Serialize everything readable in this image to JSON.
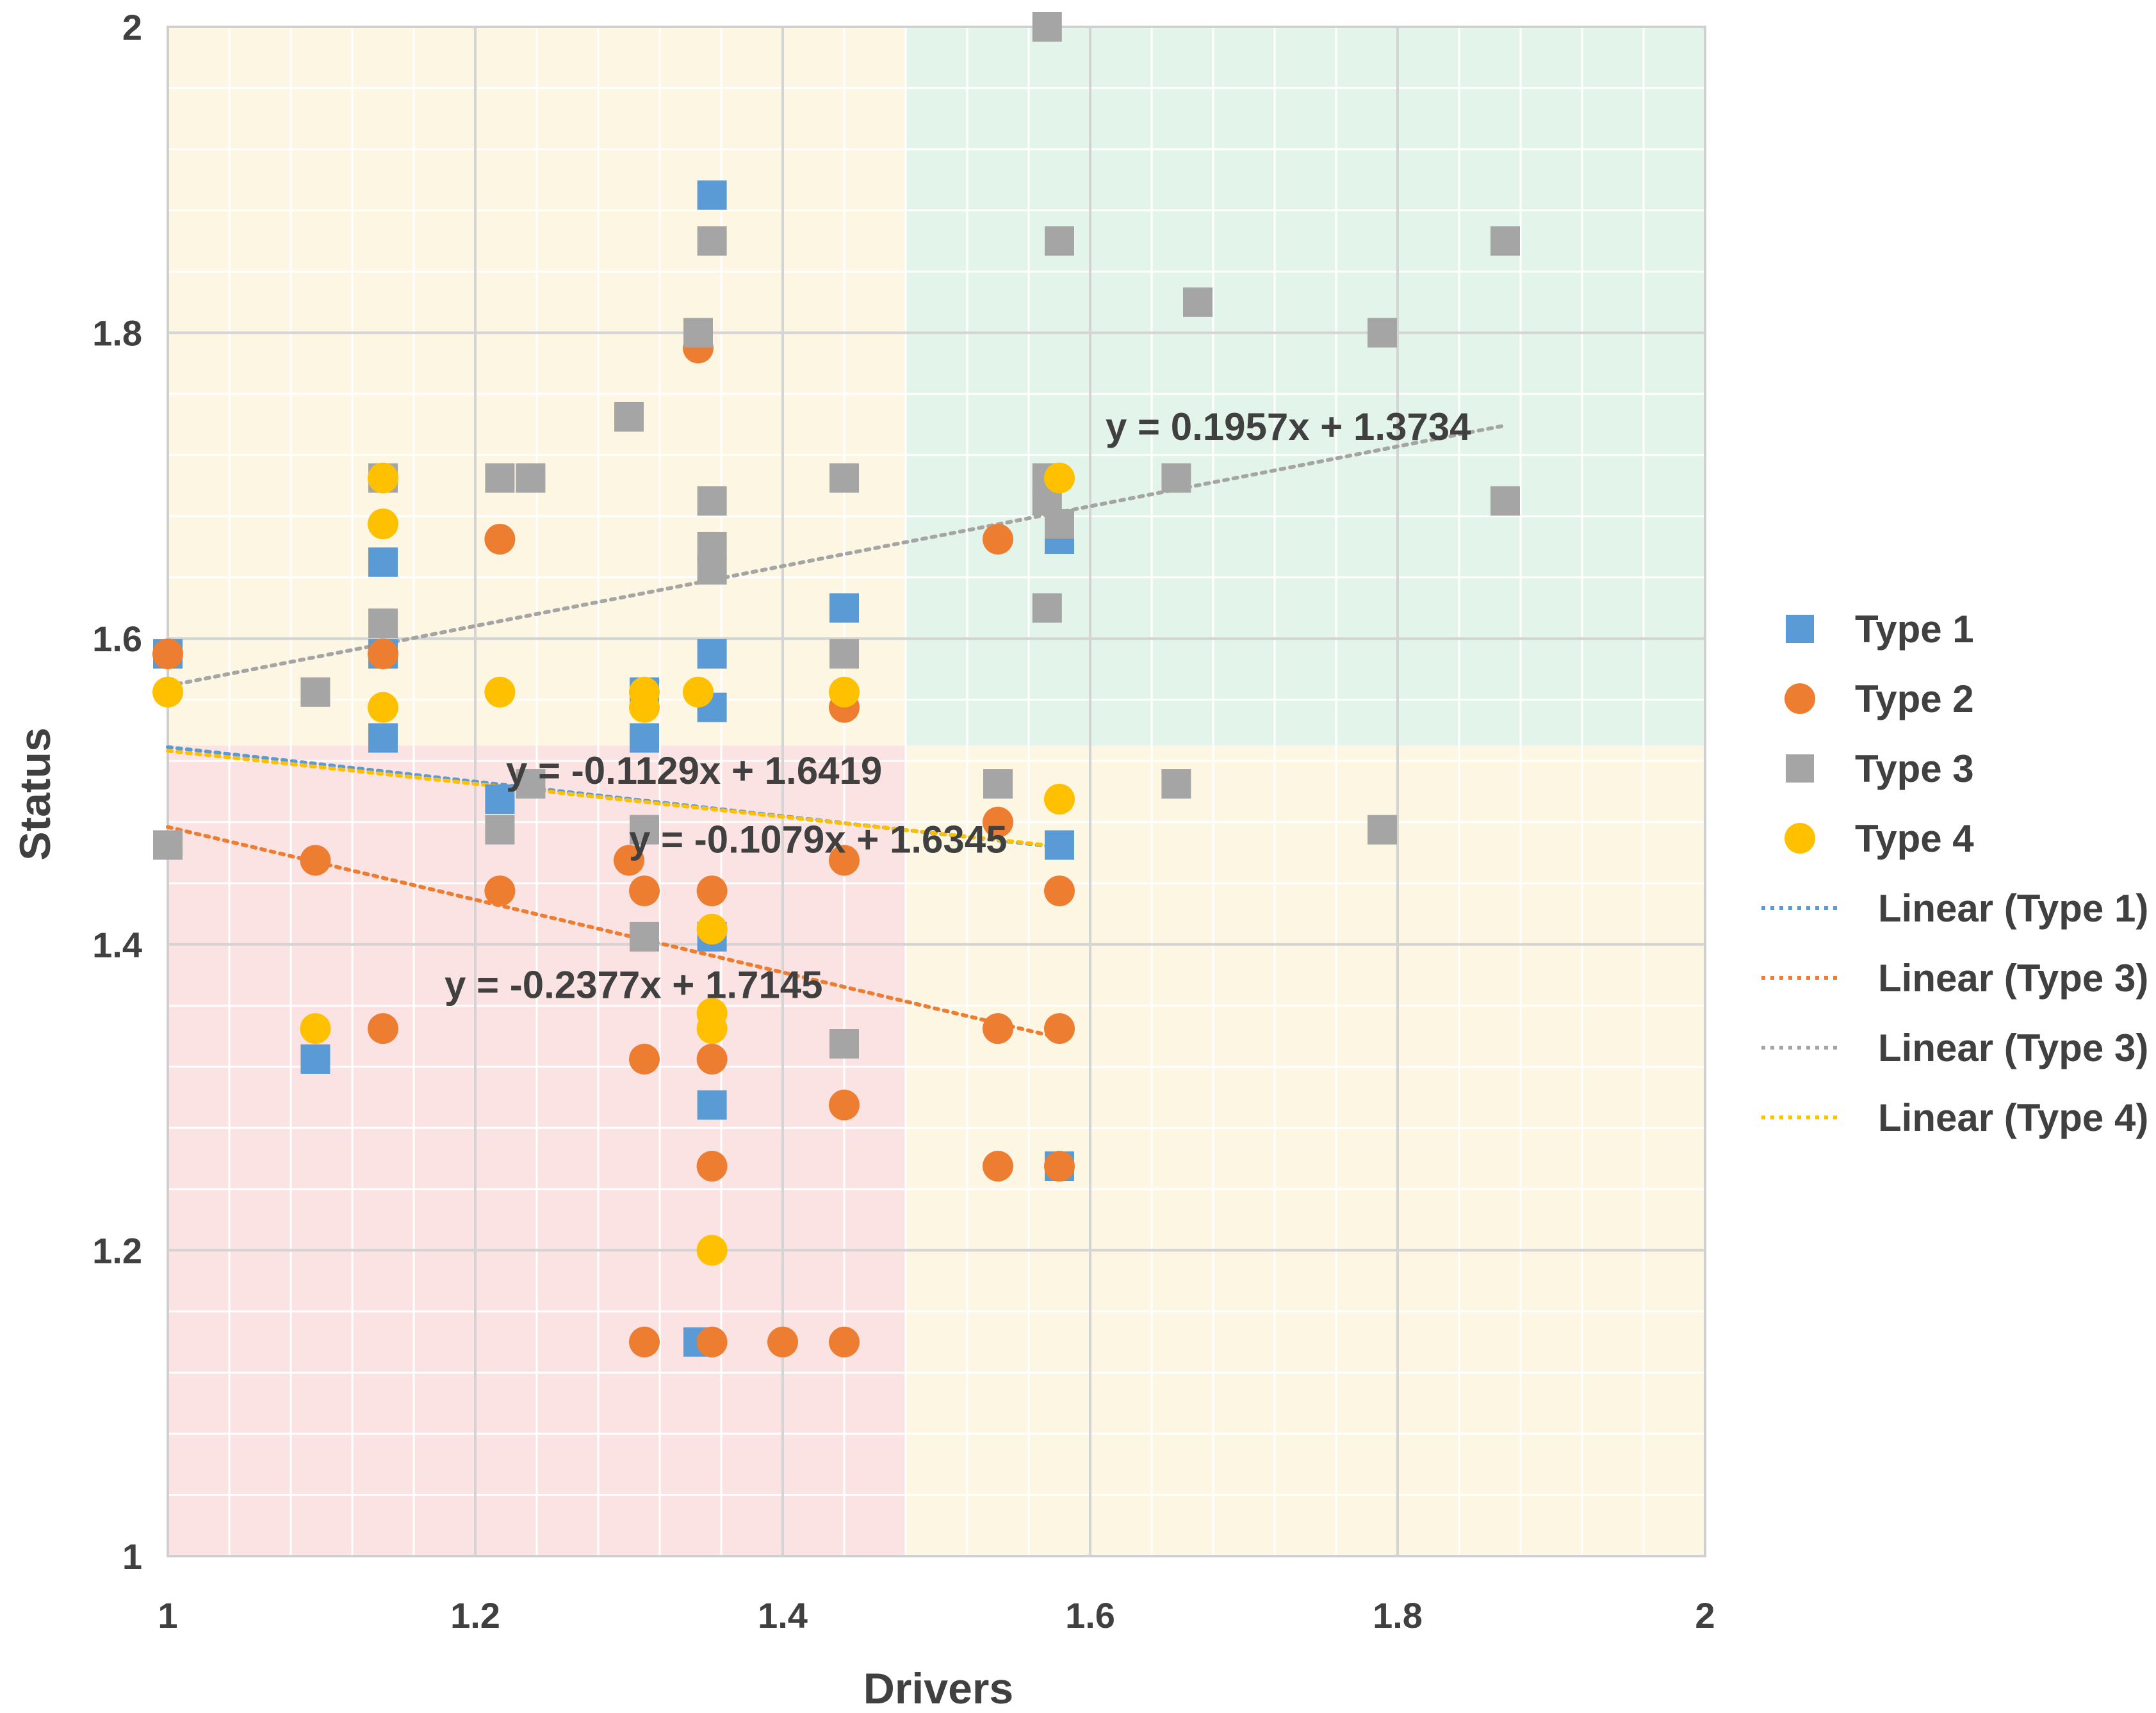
{
  "chart_data": {
    "type": "scatter",
    "title": "",
    "xlabel": "Drivers",
    "ylabel": "Status",
    "xlim": [
      1,
      2
    ],
    "ylim": [
      1,
      2
    ],
    "x_ticks": [
      "1",
      "1.2",
      "1.4",
      "1.6",
      "1.8",
      "2"
    ],
    "y_ticks": [
      "1",
      "1.2",
      "1.4",
      "1.6",
      "1.8",
      "2"
    ],
    "grid": true,
    "legend_position": "right",
    "background_regions": [
      {
        "x": [
          1,
          1.48
        ],
        "y": [
          1.53,
          2
        ],
        "color": "#fdf6e3"
      },
      {
        "x": [
          1.48,
          2
        ],
        "y": [
          1.53,
          2
        ],
        "color": "#e3f4ea"
      },
      {
        "x": [
          1,
          1.48
        ],
        "y": [
          1,
          1.53
        ],
        "color": "#fbe3e4"
      },
      {
        "x": [
          1.48,
          2
        ],
        "y": [
          1,
          1.53
        ],
        "color": "#fdf6e3"
      }
    ],
    "series": [
      {
        "name": "Type 1",
        "marker": "square",
        "color": "#5b9bd5",
        "points": [
          [
            1.0,
            1.59
          ],
          [
            1.14,
            1.65
          ],
          [
            1.14,
            1.59
          ],
          [
            1.14,
            1.535
          ],
          [
            1.096,
            1.325
          ],
          [
            1.216,
            1.495
          ],
          [
            1.31,
            1.535
          ],
          [
            1.31,
            1.565
          ],
          [
            1.354,
            1.89
          ],
          [
            1.354,
            1.59
          ],
          [
            1.354,
            1.555
          ],
          [
            1.354,
            1.405
          ],
          [
            1.354,
            1.295
          ],
          [
            1.345,
            1.14
          ],
          [
            1.44,
            1.62
          ],
          [
            1.58,
            1.665
          ],
          [
            1.58,
            1.465
          ],
          [
            1.58,
            1.255
          ]
        ]
      },
      {
        "name": "Type 2",
        "marker": "circle",
        "color": "#ed7d31",
        "points": [
          [
            1.0,
            1.59
          ],
          [
            1.096,
            1.455
          ],
          [
            1.14,
            1.59
          ],
          [
            1.14,
            1.345
          ],
          [
            1.216,
            1.665
          ],
          [
            1.216,
            1.435
          ],
          [
            1.3,
            1.455
          ],
          [
            1.31,
            1.435
          ],
          [
            1.31,
            1.325
          ],
          [
            1.31,
            1.14
          ],
          [
            1.345,
            1.79
          ],
          [
            1.354,
            1.435
          ],
          [
            1.354,
            1.325
          ],
          [
            1.354,
            1.255
          ],
          [
            1.354,
            1.14
          ],
          [
            1.4,
            1.14
          ],
          [
            1.44,
            1.555
          ],
          [
            1.44,
            1.455
          ],
          [
            1.44,
            1.295
          ],
          [
            1.44,
            1.14
          ],
          [
            1.54,
            1.665
          ],
          [
            1.54,
            1.48
          ],
          [
            1.54,
            1.345
          ],
          [
            1.54,
            1.255
          ],
          [
            1.58,
            1.435
          ],
          [
            1.58,
            1.345
          ],
          [
            1.58,
            1.255
          ]
        ]
      },
      {
        "name": "Type 3",
        "marker": "square",
        "color": "#a5a5a5",
        "points": [
          [
            1.0,
            1.465
          ],
          [
            1.096,
            1.565
          ],
          [
            1.14,
            1.705
          ],
          [
            1.14,
            1.61
          ],
          [
            1.216,
            1.705
          ],
          [
            1.216,
            1.475
          ],
          [
            1.236,
            1.705
          ],
          [
            1.236,
            1.505
          ],
          [
            1.3,
            1.745
          ],
          [
            1.31,
            1.475
          ],
          [
            1.31,
            1.405
          ],
          [
            1.345,
            1.8
          ],
          [
            1.354,
            1.86
          ],
          [
            1.354,
            1.69
          ],
          [
            1.354,
            1.66
          ],
          [
            1.354,
            1.645
          ],
          [
            1.44,
            1.705
          ],
          [
            1.44,
            1.59
          ],
          [
            1.44,
            1.335
          ],
          [
            1.54,
            1.505
          ],
          [
            1.572,
            2.0
          ],
          [
            1.572,
            1.705
          ],
          [
            1.572,
            1.69
          ],
          [
            1.572,
            1.62
          ],
          [
            1.58,
            1.86
          ],
          [
            1.58,
            1.675
          ],
          [
            1.656,
            1.705
          ],
          [
            1.656,
            1.505
          ],
          [
            1.67,
            1.82
          ],
          [
            1.79,
            1.8
          ],
          [
            1.79,
            1.475
          ],
          [
            1.87,
            1.86
          ],
          [
            1.87,
            1.69
          ]
        ]
      },
      {
        "name": "Type 4",
        "marker": "circle",
        "color": "#ffc000",
        "points": [
          [
            1.0,
            1.565
          ],
          [
            1.096,
            1.345
          ],
          [
            1.14,
            1.705
          ],
          [
            1.14,
            1.675
          ],
          [
            1.14,
            1.555
          ],
          [
            1.216,
            1.565
          ],
          [
            1.31,
            1.565
          ],
          [
            1.31,
            1.555
          ],
          [
            1.345,
            1.565
          ],
          [
            1.354,
            1.41
          ],
          [
            1.354,
            1.355
          ],
          [
            1.354,
            1.345
          ],
          [
            1.354,
            1.2
          ],
          [
            1.44,
            1.565
          ],
          [
            1.58,
            1.705
          ],
          [
            1.58,
            1.495
          ]
        ]
      }
    ],
    "trendlines": [
      {
        "name": "Linear (Type 1)",
        "color": "#5b9bd5",
        "x_range": [
          1,
          1.58
        ],
        "slope": -0.1129,
        "intercept": 1.6419,
        "equation": "y = -0.1129x + 1.6419"
      },
      {
        "name": "Linear (Type 3)",
        "color": "#ed7d31",
        "x_range": [
          1,
          1.58
        ],
        "slope": -0.2377,
        "intercept": 1.7145,
        "equation": "y = -0.2377x + 1.7145"
      },
      {
        "name": "Linear (Type 3)",
        "color": "#a5a5a5",
        "x_range": [
          1,
          1.87
        ],
        "slope": 0.1957,
        "intercept": 1.3734,
        "equation": "y = 0.1957x + 1.3734"
      },
      {
        "name": "Linear (Type 4)",
        "color": "#ffc000",
        "x_range": [
          1,
          1.58
        ],
        "slope": -0.1079,
        "intercept": 1.6345,
        "equation": "y = -0.1079x + 1.6345"
      }
    ]
  }
}
